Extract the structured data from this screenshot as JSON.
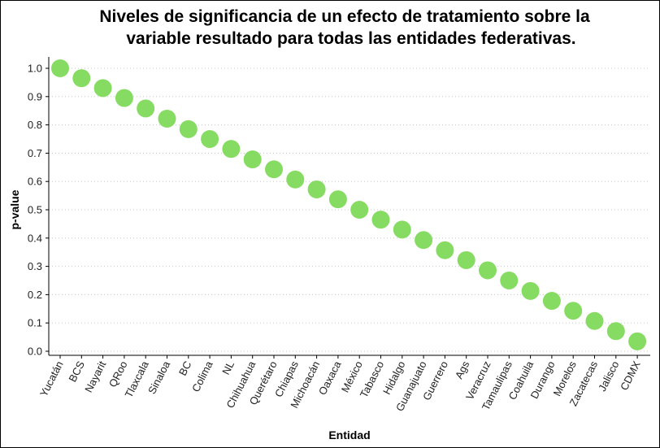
{
  "chart_data": {
    "type": "scatter",
    "title_lines": [
      "Niveles de significancia de un efecto de tratamiento sobre la",
      "variable resultado para todas las entidades federativas."
    ],
    "xlabel": "Entidad",
    "ylabel": "p-value",
    "ylim": [
      0.0,
      1.0
    ],
    "yticks": [
      "0.0",
      "0.1",
      "0.2",
      "0.3",
      "0.4",
      "0.5",
      "0.6",
      "0.7",
      "0.8",
      "0.9",
      "1.0"
    ],
    "grid": "horizontal dotted",
    "marker_color": "#86dc62",
    "categories": [
      "Yucatán",
      "BCS",
      "Nayarit",
      "QRoo",
      "Tlaxcala",
      "Sinaloa",
      "BC",
      "Colima",
      "NL",
      "Chihuahua",
      "Querétaro",
      "Chiapas",
      "Michoacán",
      "Oaxaca",
      "México",
      "Tabasco",
      "Hidalgo",
      "Guanajuato",
      "Guerrero",
      "Ags",
      "Veracruz",
      "Tamaulipas",
      "Coahuila",
      "Durango",
      "Morelos",
      "Zacatecas",
      "Jalisco",
      "CDMX"
    ],
    "values": [
      1.0,
      0.965,
      0.93,
      0.895,
      0.858,
      0.822,
      0.785,
      0.75,
      0.715,
      0.678,
      0.643,
      0.607,
      0.572,
      0.537,
      0.5,
      0.465,
      0.43,
      0.393,
      0.357,
      0.322,
      0.286,
      0.25,
      0.213,
      0.178,
      0.143,
      0.107,
      0.071,
      0.035
    ]
  }
}
